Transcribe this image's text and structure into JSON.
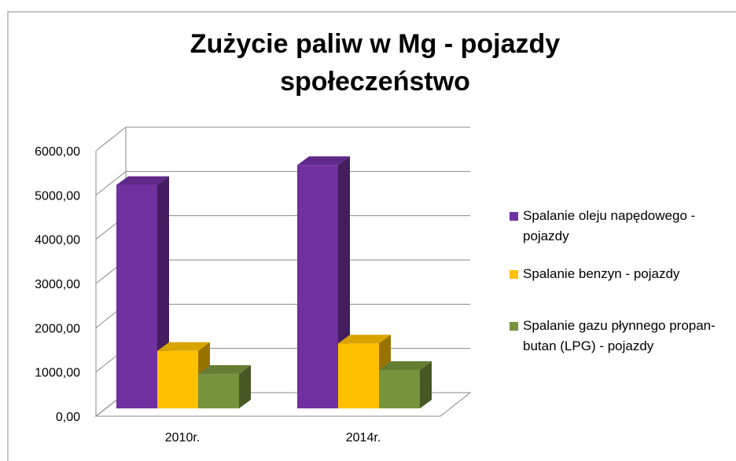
{
  "chart_data": {
    "type": "bar3d",
    "title": [
      "Zużycie paliw  w Mg - pojazdy",
      "społeczeństwo"
    ],
    "categories": [
      "2010r.",
      "2014r."
    ],
    "series": [
      {
        "name": "Spalanie oleju napędowego - pojazdy",
        "color": "#7030a0",
        "values": [
          5050,
          5500
        ]
      },
      {
        "name": "Spalanie benzyn - pojazdy",
        "color": "#ffc000",
        "values": [
          1300,
          1470
        ]
      },
      {
        "name": "Spalanie gazu płynnego propan-butan (LPG) - pojazdy",
        "color": "#77933c",
        "values": [
          780,
          870
        ]
      }
    ],
    "ylim": [
      0,
      6000
    ],
    "yticks": [
      {
        "value": 0,
        "label": "0,00"
      },
      {
        "value": 1000,
        "label": "1000,00"
      },
      {
        "value": 2000,
        "label": "2000,00"
      },
      {
        "value": 3000,
        "label": "3000,00"
      },
      {
        "value": 4000,
        "label": "4000,00"
      },
      {
        "value": 5000,
        "label": "5000,00"
      },
      {
        "value": 6000,
        "label": "6000,00"
      }
    ],
    "grid": true,
    "legend": "right"
  }
}
